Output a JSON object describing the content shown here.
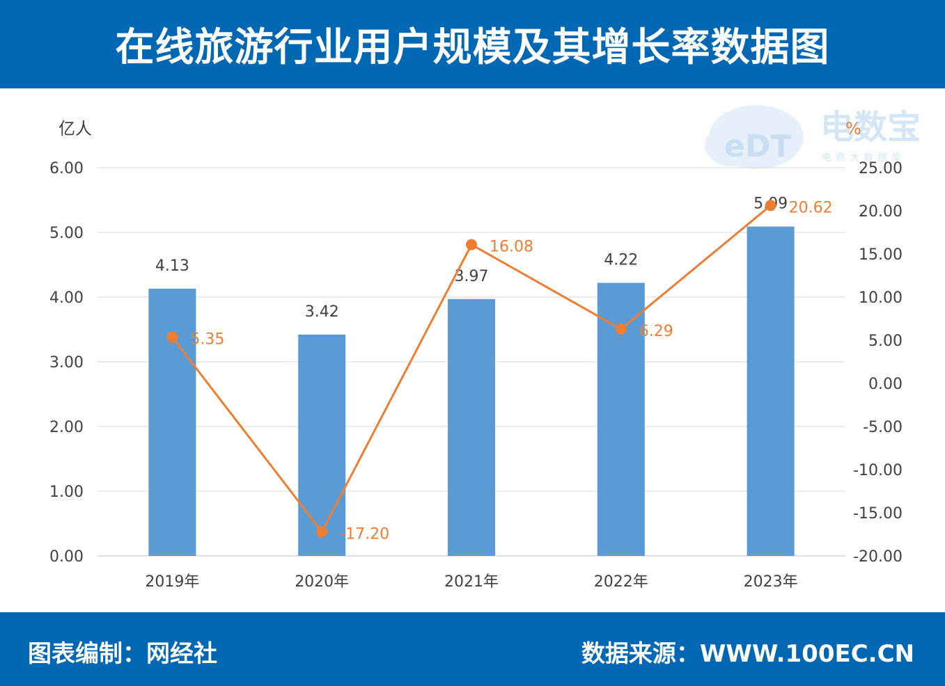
{
  "header": {
    "title": "在线旅游行业用户规模及其增长率数据图"
  },
  "footer": {
    "left": "图表编制：网经社",
    "right": "数据来源：WWW.100EC.CN"
  },
  "watermark": {
    "logo": "eDT",
    "name": "电数宝",
    "tagline": "电商大数据库"
  },
  "colors": {
    "brand": "#0067b3",
    "bar": "#5b9bd5",
    "line": "#ed7d31",
    "grid": "#d9d9d9"
  },
  "chart_data": {
    "type": "bar",
    "categories": [
      "2019年",
      "2020年",
      "2021年",
      "2022年",
      "2023年"
    ],
    "series": [
      {
        "type": "bar",
        "axis": "left",
        "values": [
          4.13,
          3.42,
          3.97,
          4.22,
          5.09
        ],
        "labels": [
          "4.13",
          "3.42",
          "3.97",
          "4.22",
          "5.09"
        ]
      },
      {
        "type": "line",
        "axis": "right",
        "values": [
          5.35,
          -17.2,
          16.08,
          6.29,
          20.62
        ],
        "labels": [
          "5.35",
          "-17.20",
          "16.08",
          "6.29",
          "20.62"
        ]
      }
    ],
    "y_left": {
      "unit": "亿人",
      "min": 0,
      "max": 6,
      "ticks": [
        "0.00",
        "1.00",
        "2.00",
        "3.00",
        "4.00",
        "5.00",
        "6.00"
      ]
    },
    "y_right": {
      "unit": "%",
      "min": -20,
      "max": 25,
      "ticks": [
        "-20.00",
        "-15.00",
        "-10.00",
        "-5.00",
        "0.00",
        "5.00",
        "10.00",
        "15.00",
        "20.00",
        "25.00"
      ]
    },
    "grid": true,
    "legend": "none"
  }
}
